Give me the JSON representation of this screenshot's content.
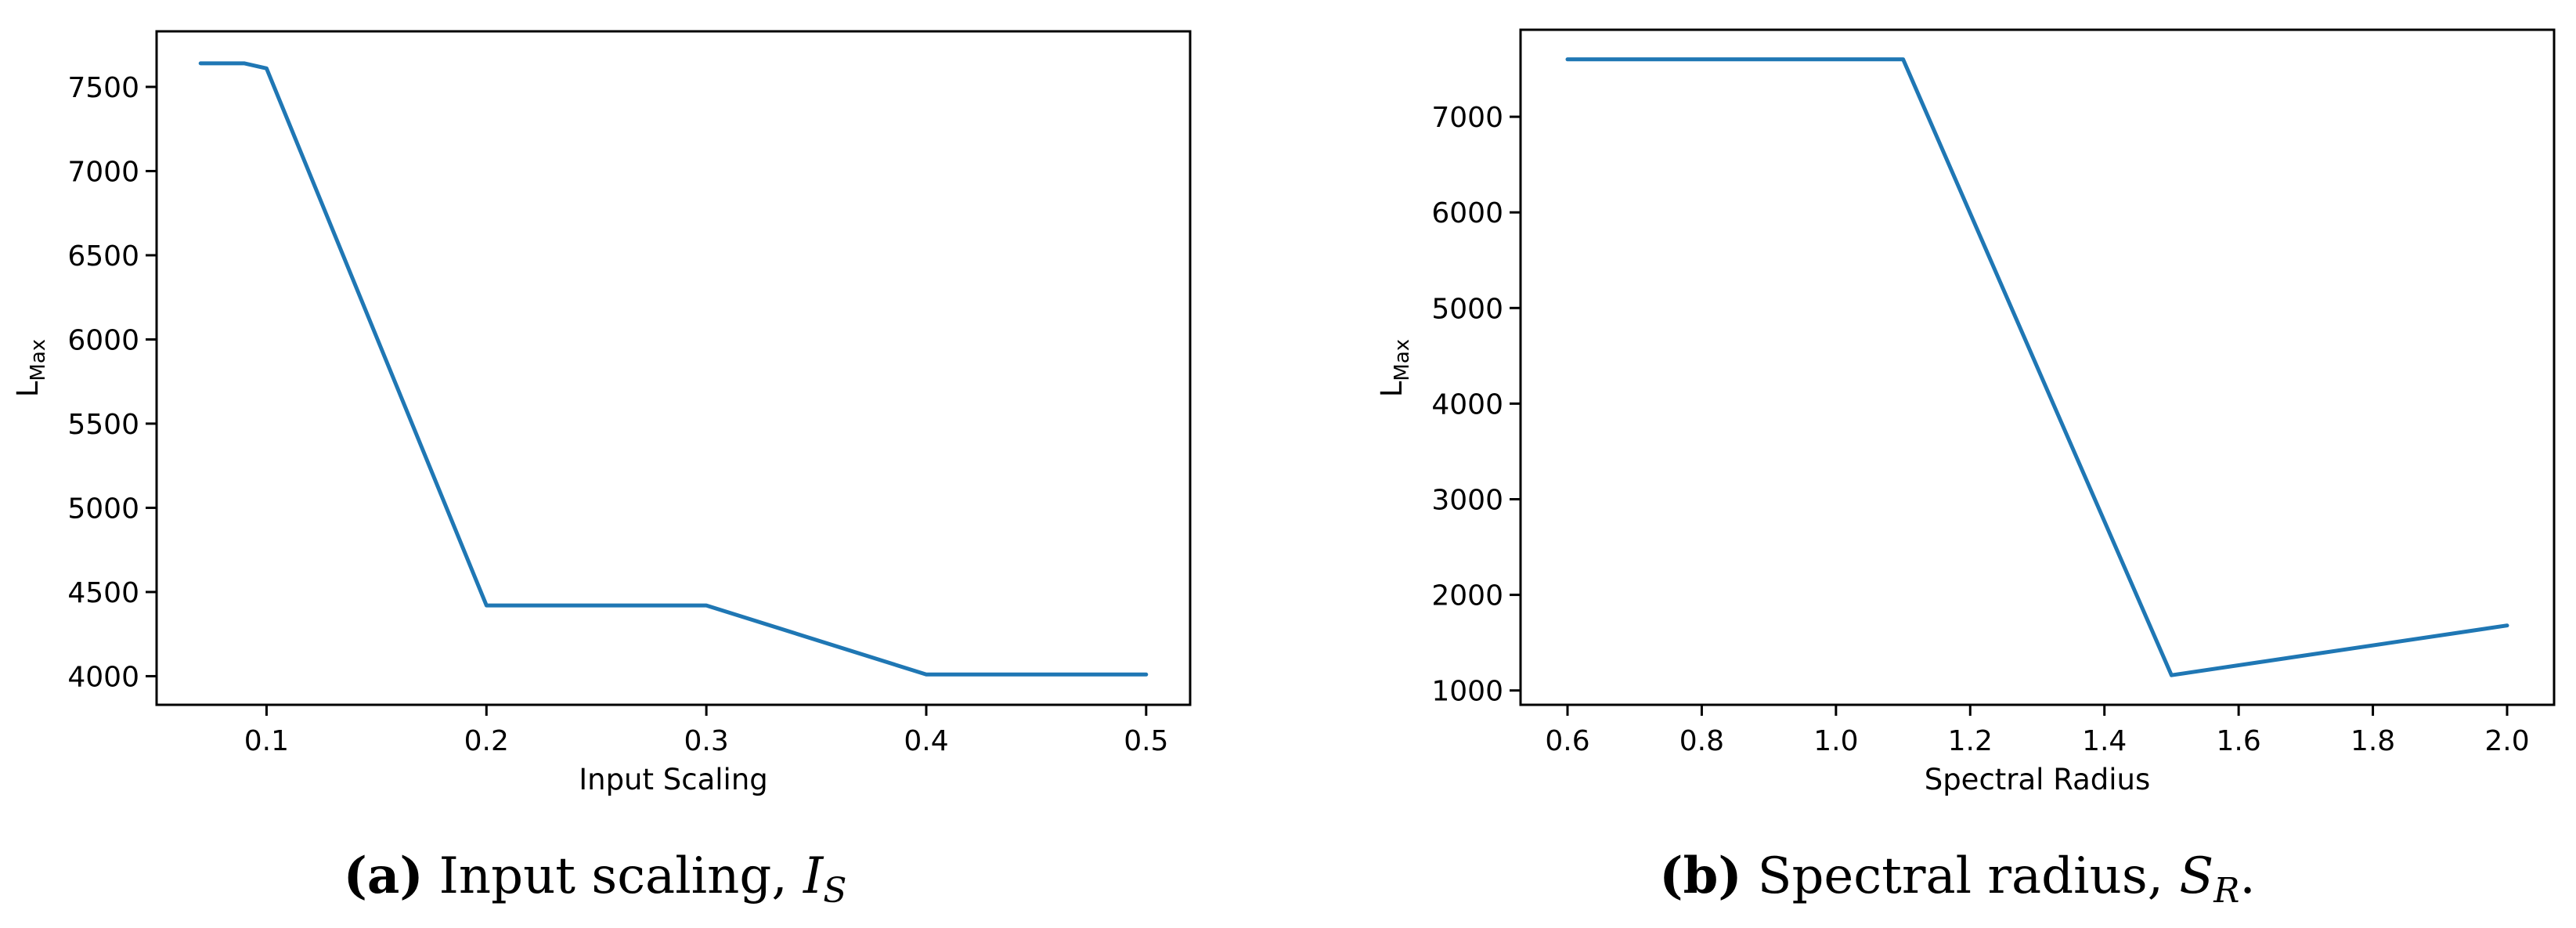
{
  "colors": {
    "series": "#1f77b4",
    "axis": "#000000"
  },
  "chart_data": [
    {
      "type": "line",
      "xlabel": "Input Scaling",
      "ylabel": "L",
      "ylabel_sub": "Max",
      "xlim": [
        0.05,
        0.52
      ],
      "ylim": [
        3830,
        7830
      ],
      "xticks": [
        0.1,
        0.2,
        0.3,
        0.4,
        0.5
      ],
      "xtick_labels": [
        "0.1",
        "0.2",
        "0.3",
        "0.4",
        "0.5"
      ],
      "yticks": [
        4000,
        4500,
        5000,
        5500,
        6000,
        6500,
        7000,
        7500
      ],
      "ytick_labels": [
        "4000",
        "4500",
        "5000",
        "5500",
        "6000",
        "6500",
        "7000",
        "7500"
      ],
      "grid": false,
      "series": [
        {
          "x": [
            0.07,
            0.09,
            0.1,
            0.2,
            0.3,
            0.4,
            0.5
          ],
          "y": [
            7640,
            7640,
            7610,
            4420,
            4420,
            4010,
            4010
          ]
        }
      ],
      "caption": {
        "letter": "(a)",
        "text": "Input scaling, ",
        "var": "I",
        "var_sub": "S",
        "end": ""
      }
    },
    {
      "type": "line",
      "xlabel": "Spectral Radius",
      "ylabel": "L",
      "ylabel_sub": "Max",
      "xlim": [
        0.53,
        2.07
      ],
      "ylim": [
        850,
        7910
      ],
      "xticks": [
        0.6,
        0.8,
        1.0,
        1.2,
        1.4,
        1.6,
        1.8,
        2.0
      ],
      "xtick_labels": [
        "0.6",
        "0.8",
        "1.0",
        "1.2",
        "1.4",
        "1.6",
        "1.8",
        "2.0"
      ],
      "yticks": [
        1000,
        2000,
        3000,
        4000,
        5000,
        6000,
        7000
      ],
      "ytick_labels": [
        "1000",
        "2000",
        "3000",
        "4000",
        "5000",
        "6000",
        "7000"
      ],
      "grid": false,
      "series": [
        {
          "x": [
            0.6,
            1.1,
            1.5,
            2.0
          ],
          "y": [
            7600,
            7600,
            1160,
            1680
          ]
        }
      ],
      "caption": {
        "letter": "(b)",
        "text": "Spectral radius, ",
        "var": "S",
        "var_sub": "R",
        "end": "."
      }
    }
  ]
}
